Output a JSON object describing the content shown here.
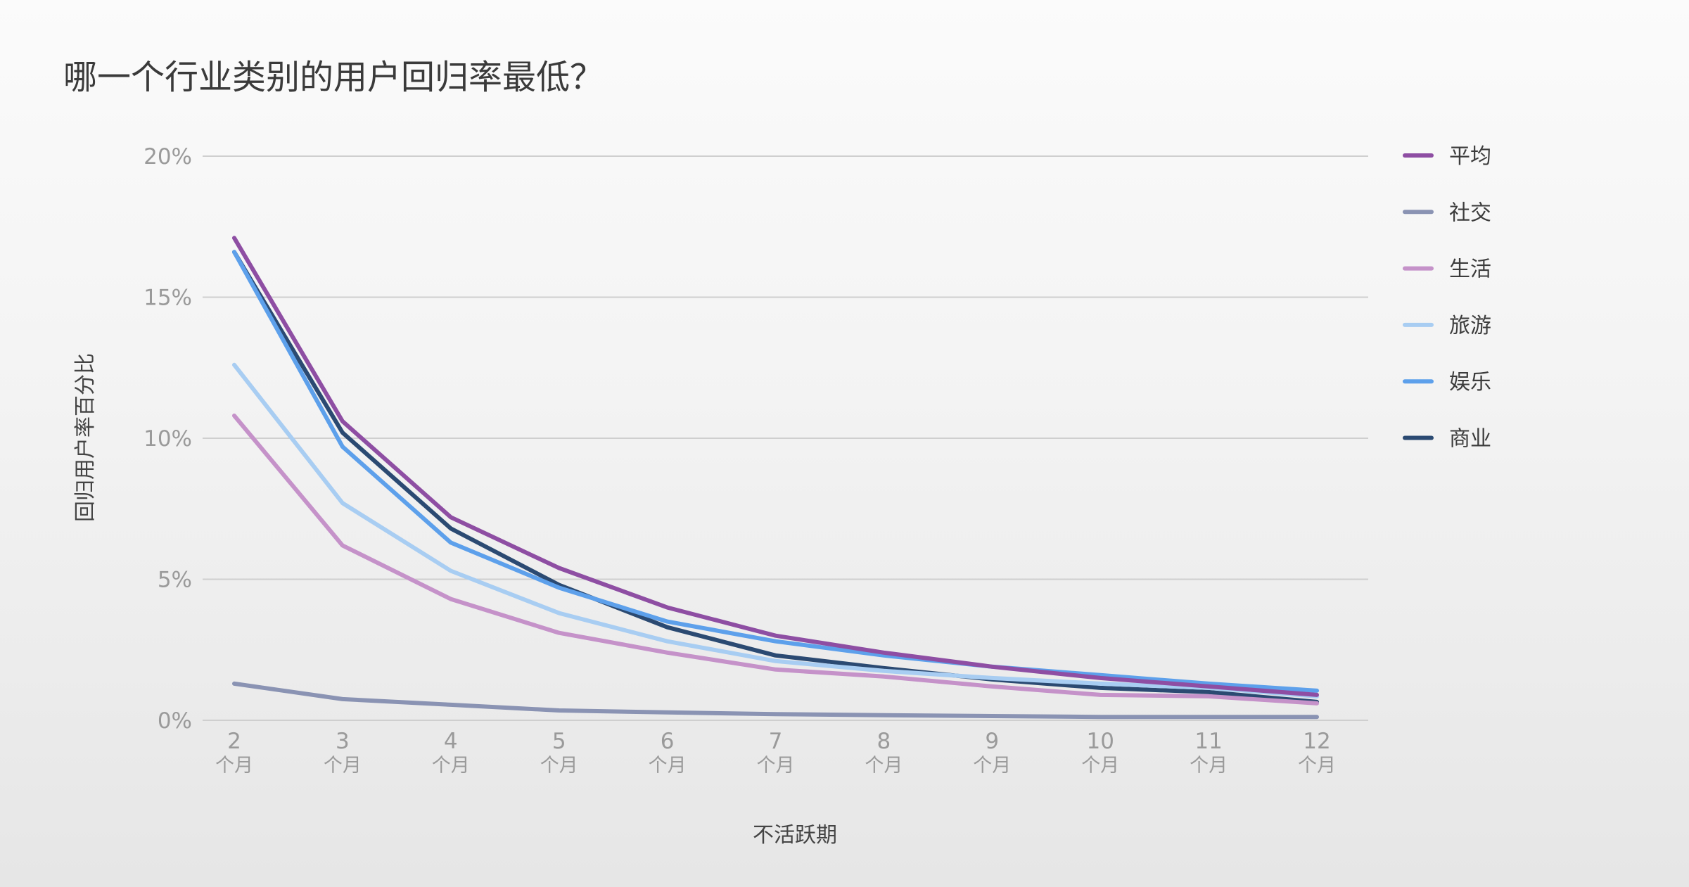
{
  "chart_data": {
    "type": "line",
    "title": "哪一个行业类别的用户回归率最低？",
    "xlabel": "不活跃期",
    "ylabel": "回归用户率百分比",
    "categories": [
      {
        "top": "2",
        "bottom": "个月"
      },
      {
        "top": "3",
        "bottom": "个月"
      },
      {
        "top": "4",
        "bottom": "个月"
      },
      {
        "top": "5",
        "bottom": "个月"
      },
      {
        "top": "6",
        "bottom": "个月"
      },
      {
        "top": "7",
        "bottom": "个月"
      },
      {
        "top": "8",
        "bottom": "个月"
      },
      {
        "top": "9",
        "bottom": "个月"
      },
      {
        "top": "10",
        "bottom": "个月"
      },
      {
        "top": "11",
        "bottom": "个月"
      },
      {
        "top": "12",
        "bottom": "个月"
      }
    ],
    "ylim": [
      0,
      20
    ],
    "yticks": [
      0,
      5,
      10,
      15,
      20
    ],
    "ytick_labels": [
      "0%",
      "5%",
      "10%",
      "15%",
      "20%"
    ],
    "grid": true,
    "legend_position": "right",
    "series": [
      {
        "name": "平均",
        "color": "#8e4ea3",
        "values": [
          17.1,
          10.6,
          7.2,
          5.4,
          4.0,
          3.0,
          2.4,
          1.9,
          1.5,
          1.2,
          0.9
        ]
      },
      {
        "name": "社交",
        "color": "#8a93b3",
        "values": [
          1.3,
          0.75,
          0.55,
          0.35,
          0.28,
          0.22,
          0.18,
          0.15,
          0.12,
          0.12,
          0.12
        ]
      },
      {
        "name": "生活",
        "color": "#c592c9",
        "values": [
          10.8,
          6.2,
          4.3,
          3.1,
          2.4,
          1.8,
          1.55,
          1.2,
          0.9,
          0.85,
          0.6
        ]
      },
      {
        "name": "旅游",
        "color": "#a8cdf2",
        "values": [
          12.6,
          7.7,
          5.3,
          3.8,
          2.8,
          2.1,
          1.75,
          1.5,
          1.3,
          1.15,
          0.85
        ]
      },
      {
        "name": "娱乐",
        "color": "#5da0eb",
        "values": [
          16.6,
          9.7,
          6.3,
          4.7,
          3.5,
          2.8,
          2.3,
          1.9,
          1.6,
          1.3,
          1.05
        ]
      },
      {
        "name": "商业",
        "color": "#2b4a72",
        "values": [
          16.6,
          10.2,
          6.8,
          4.8,
          3.3,
          2.3,
          1.85,
          1.45,
          1.15,
          1.0,
          0.65
        ]
      }
    ]
  }
}
